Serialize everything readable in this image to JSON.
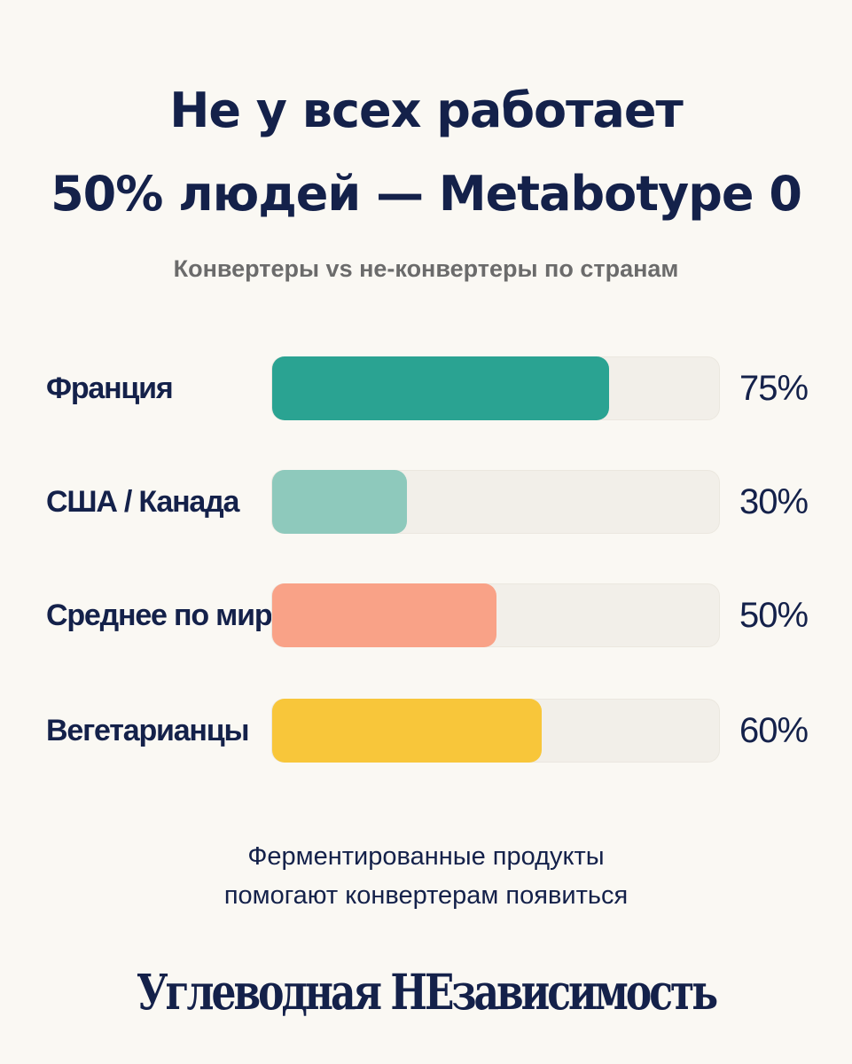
{
  "header": {
    "title_line1": "Не у всех работает",
    "title_line2": "50% людей — Metabotype 0",
    "subtitle": "Конвертеры vs не-конвертеры по странам"
  },
  "chart_data": {
    "type": "bar",
    "orientation": "horizontal",
    "title": "Не у всех работает 50% людей — Metabotype 0",
    "subtitle": "Конвертеры vs не-конвертеры по странам",
    "xlim": [
      0,
      100
    ],
    "grid": false,
    "categories": [
      "Франция",
      "США / Канада",
      "Среднее по миру",
      "Вегетарианцы"
    ],
    "values": [
      75,
      30,
      50,
      60
    ],
    "value_labels": [
      "75%",
      "30%",
      "50%",
      "60%"
    ],
    "colors": [
      "#2aa392",
      "#8ec9bc",
      "#f9a287",
      "#f8c63a"
    ],
    "track_color": "#f2efe9"
  },
  "footer": {
    "note_line1": "Ферментированные продукты",
    "note_line2": "помогают конвертерам появиться",
    "brand": "Углеводная НЕзависимость"
  }
}
